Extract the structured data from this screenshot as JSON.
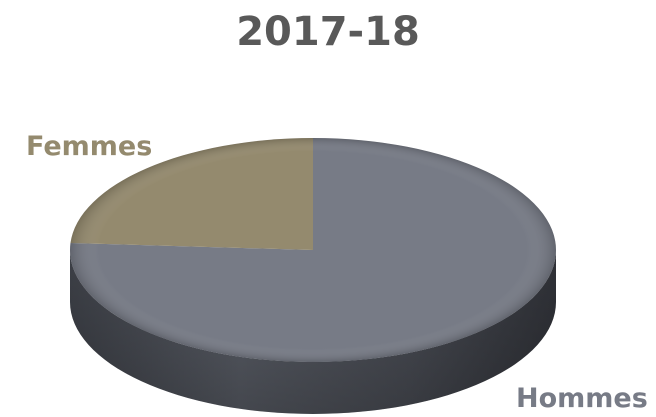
{
  "chart_data": {
    "type": "pie",
    "title": "2017-18",
    "slices": [
      {
        "label": "Hommes",
        "value": 76,
        "color": "#777b86"
      },
      {
        "label": "Femmes",
        "value": 24,
        "color": "#948a6e"
      }
    ],
    "style": "3d",
    "legend": "none"
  }
}
